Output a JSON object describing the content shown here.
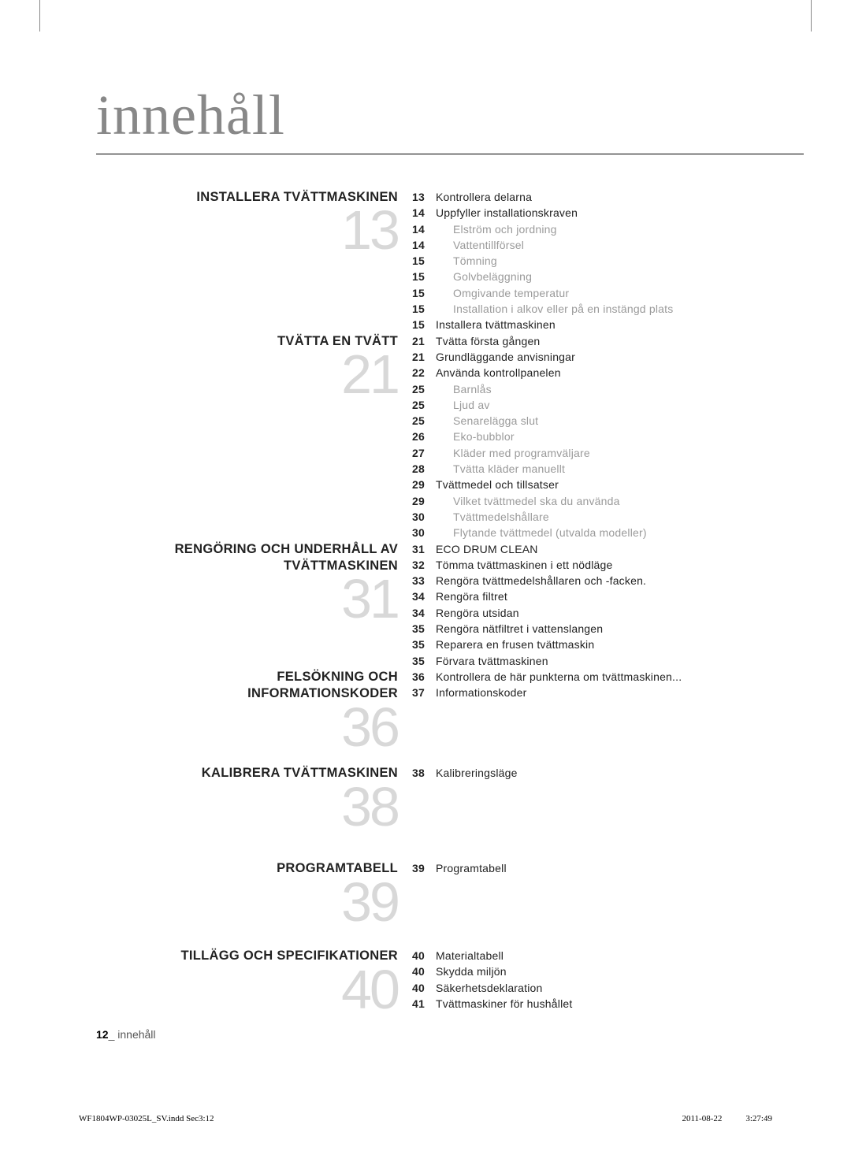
{
  "page_title": "innehåll",
  "sections": [
    {
      "title": "INSTALLERA TVÄTTMASKINEN",
      "number": "13",
      "entries": [
        {
          "page": "13",
          "label": "Kontrollera delarna",
          "sub": false
        },
        {
          "page": "14",
          "label": "Uppfyller installationskraven",
          "sub": false
        },
        {
          "page": "14",
          "label": "Elström och jordning",
          "sub": true
        },
        {
          "page": "14",
          "label": "Vattentillförsel",
          "sub": true
        },
        {
          "page": "15",
          "label": "Tömning",
          "sub": true
        },
        {
          "page": "15",
          "label": "Golvbeläggning",
          "sub": true
        },
        {
          "page": "15",
          "label": "Omgivande temperatur",
          "sub": true
        },
        {
          "page": "15",
          "label": "Installation i alkov eller på en instängd plats",
          "sub": true
        },
        {
          "page": "15",
          "label": "Installera tvättmaskinen",
          "sub": false
        }
      ]
    },
    {
      "title": "TVÄTTA EN TVÄTT",
      "number": "21",
      "entries": [
        {
          "page": "21",
          "label": "Tvätta första gången",
          "sub": false
        },
        {
          "page": "21",
          "label": "Grundläggande anvisningar",
          "sub": false
        },
        {
          "page": "22",
          "label": "Använda kontrollpanelen",
          "sub": false
        },
        {
          "page": "25",
          "label": "Barnlås",
          "sub": true
        },
        {
          "page": "25",
          "label": "Ljud av",
          "sub": true
        },
        {
          "page": "25",
          "label": "Senarelägga slut",
          "sub": true
        },
        {
          "page": "26",
          "label": "Eko-bubblor",
          "sub": true
        },
        {
          "page": "27",
          "label": "Kläder med programväljare",
          "sub": true
        },
        {
          "page": "28",
          "label": "Tvätta kläder manuellt",
          "sub": true
        },
        {
          "page": "29",
          "label": "Tvättmedel och tillsatser",
          "sub": false
        },
        {
          "page": "29",
          "label": "Vilket tvättmedel ska du använda",
          "sub": true
        },
        {
          "page": "30",
          "label": "Tvättmedelshållare",
          "sub": true
        },
        {
          "page": "30",
          "label": "Flytande tvättmedel (utvalda modeller)",
          "sub": true
        }
      ]
    },
    {
      "title": "RENGÖRING OCH UNDERHÅLL AV TVÄTTMASKINEN",
      "number": "31",
      "entries": [
        {
          "page": "31",
          "label": "ECO DRUM CLEAN",
          "sub": false
        },
        {
          "page": "32",
          "label": "Tömma tvättmaskinen i ett nödläge",
          "sub": false
        },
        {
          "page": "33",
          "label": "Rengöra tvättmedelshållaren och -facken.",
          "sub": false
        },
        {
          "page": "34",
          "label": "Rengöra filtret",
          "sub": false
        },
        {
          "page": "34",
          "label": "Rengöra utsidan",
          "sub": false
        },
        {
          "page": "35",
          "label": "Rengöra nätfiltret i vattenslangen",
          "sub": false
        },
        {
          "page": "35",
          "label": "Reparera en frusen tvättmaskin",
          "sub": false
        },
        {
          "page": "35",
          "label": "Förvara tvättmaskinen",
          "sub": false
        }
      ]
    },
    {
      "title": "FELSÖKNING OCH INFORMATIONSKODER",
      "number": "36",
      "entries": [
        {
          "page": "36",
          "label": "Kontrollera de här punkterna om tvättmaskinen...",
          "sub": false
        },
        {
          "page": "37",
          "label": "Informationskoder",
          "sub": false
        }
      ]
    },
    {
      "title": "KALIBRERA TVÄTTMASKINEN",
      "number": "38",
      "entries": [
        {
          "page": "38",
          "label": "Kalibreringsläge",
          "sub": false
        }
      ]
    },
    {
      "title": "PROGRAMTABELL",
      "number": "39",
      "entries": [
        {
          "page": "39",
          "label": "Programtabell",
          "sub": false
        }
      ]
    },
    {
      "title": "TILLÄGG OCH SPECIFIKATIONER",
      "number": "40",
      "entries": [
        {
          "page": "40",
          "label": "Materialtabell",
          "sub": false
        },
        {
          "page": "40",
          "label": "Skydda miljön",
          "sub": false
        },
        {
          "page": "40",
          "label": "Säkerhetsdeklaration",
          "sub": false
        },
        {
          "page": "41",
          "label": "Tvättmaskiner för hushållet",
          "sub": false
        }
      ]
    }
  ],
  "footer": {
    "page_num": "12",
    "separator": "_",
    "text": "innehåll"
  },
  "print_footer": {
    "filename": "WF1804WP-03025L_SV.indd   Sec3:12",
    "date": "2011-08-22",
    "time": "3:27:49"
  },
  "spacing": {
    "section_bottom_margins": [
      0,
      0,
      0,
      18,
      38,
      28,
      0
    ]
  }
}
